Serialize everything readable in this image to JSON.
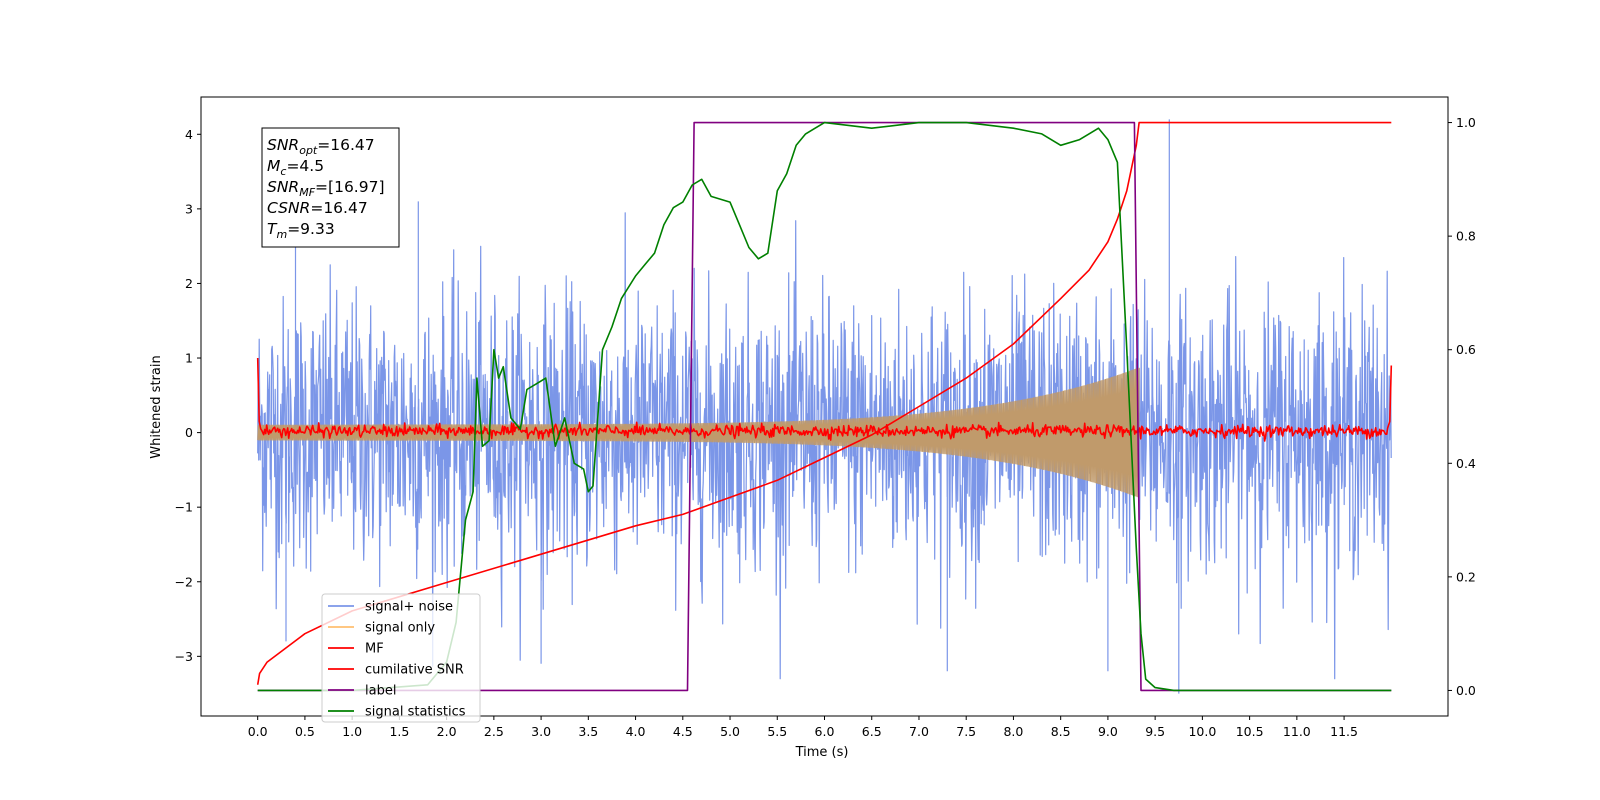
{
  "chart_data": {
    "type": "line",
    "xlabel": "Time (s)",
    "ylabel": "Whitened strain",
    "xlim": [
      -0.6,
      12.6
    ],
    "ylim": [
      -3.8,
      4.5
    ],
    "y2lim": [
      -0.045,
      1.045
    ],
    "x_ticks": [
      0.0,
      0.5,
      1.0,
      1.5,
      2.0,
      2.5,
      3.0,
      3.5,
      4.0,
      4.5,
      5.0,
      5.5,
      6.0,
      6.5,
      7.0,
      7.5,
      8.0,
      8.5,
      9.0,
      9.5,
      10.0,
      10.5,
      11.0,
      11.5
    ],
    "x_tick_labels": [
      "0.0",
      "0.5",
      "1.0",
      "1.5",
      "2.0",
      "2.5",
      "3.0",
      "3.5",
      "4.0",
      "4.5",
      "5.0",
      "5.5",
      "6.0",
      "6.5",
      "7.0",
      "7.5",
      "8.0",
      "8.5",
      "9.0",
      "9.5",
      "10.0",
      "10.5",
      "11.0",
      "11.5"
    ],
    "y_ticks": [
      -3,
      -2,
      -1,
      0,
      1,
      2,
      3,
      4
    ],
    "y_tick_labels": [
      "−3",
      "−2",
      "−1",
      "0",
      "1",
      "2",
      "3",
      "4"
    ],
    "y2_ticks": [
      0.0,
      0.2,
      0.4,
      0.6,
      0.8,
      1.0
    ],
    "y2_tick_labels": [
      "0.0",
      "0.2",
      "0.4",
      "0.6",
      "0.8",
      "1.0"
    ],
    "grid": false,
    "legend_position": "lower-left",
    "series": [
      {
        "name": "signal+ noise",
        "axis": "left",
        "color": "#7b96e8",
        "kind": "noise-band",
        "x_range": [
          0.0,
          12.0
        ],
        "noise_std": 0.9,
        "spikes": [
          {
            "x": 0.4,
            "y": 3.1
          },
          {
            "x": 1.7,
            "y": 3.1
          },
          {
            "x": 0.3,
            "y": -2.8
          },
          {
            "x": 3.0,
            "y": -3.1
          },
          {
            "x": 7.3,
            "y": -3.2
          },
          {
            "x": 9.0,
            "y": -3.2
          },
          {
            "x": 9.65,
            "y": 4.2
          },
          {
            "x": 9.75,
            "y": -3.5
          }
        ]
      },
      {
        "name": "signal only",
        "axis": "left",
        "color": "#c09a6b",
        "kind": "chirp",
        "x_range": [
          0.0,
          9.33
        ],
        "amplitude_start": 0.1,
        "amplitude_end": 0.85
      },
      {
        "name": "MF",
        "axis": "left",
        "color": "#ff0000",
        "kind": "flat-noise",
        "x_range": [
          0.0,
          12.0
        ],
        "noise_std": 0.04,
        "edge_values": [
          1.0,
          0.9
        ]
      },
      {
        "name": "cumilative SNR",
        "axis": "right",
        "color": "#ff0000",
        "x": [
          0.0,
          0.02,
          0.1,
          0.5,
          1.0,
          2.0,
          3.0,
          4.0,
          4.5,
          5.0,
          5.5,
          6.0,
          6.5,
          7.0,
          7.5,
          8.0,
          8.5,
          8.8,
          9.0,
          9.1,
          9.2,
          9.3,
          9.33,
          12.0
        ],
        "values": [
          0.01,
          0.03,
          0.05,
          0.1,
          0.14,
          0.19,
          0.24,
          0.29,
          0.31,
          0.34,
          0.37,
          0.41,
          0.45,
          0.5,
          0.55,
          0.61,
          0.69,
          0.74,
          0.79,
          0.83,
          0.88,
          0.96,
          1.0,
          1.0
        ]
      },
      {
        "name": "label",
        "axis": "right",
        "color": "#800080",
        "x": [
          0.0,
          4.55,
          4.62,
          9.28,
          9.35,
          12.0
        ],
        "values": [
          0.0,
          0.0,
          1.0,
          1.0,
          0.0,
          0.0
        ]
      },
      {
        "name": "signal statistics",
        "axis": "right",
        "color": "#008000",
        "x": [
          0.0,
          1.0,
          1.8,
          2.0,
          2.1,
          2.2,
          2.28,
          2.32,
          2.38,
          2.45,
          2.5,
          2.55,
          2.6,
          2.68,
          2.78,
          2.85,
          2.95,
          3.05,
          3.15,
          3.25,
          3.35,
          3.45,
          3.5,
          3.55,
          3.65,
          3.75,
          3.85,
          4.0,
          4.1,
          4.2,
          4.3,
          4.4,
          4.5,
          4.6,
          4.7,
          4.8,
          5.0,
          5.1,
          5.2,
          5.3,
          5.4,
          5.5,
          5.6,
          5.7,
          5.8,
          5.9,
          6.0,
          6.5,
          7.0,
          7.5,
          8.0,
          8.3,
          8.5,
          8.7,
          8.8,
          8.9,
          9.0,
          9.1,
          9.2,
          9.3,
          9.35,
          9.4,
          9.5,
          9.7,
          12.0
        ],
        "values": [
          0.0,
          0.0,
          0.01,
          0.05,
          0.12,
          0.3,
          0.35,
          0.55,
          0.43,
          0.44,
          0.6,
          0.55,
          0.57,
          0.48,
          0.46,
          0.53,
          0.54,
          0.55,
          0.43,
          0.48,
          0.4,
          0.39,
          0.35,
          0.36,
          0.6,
          0.64,
          0.69,
          0.73,
          0.75,
          0.77,
          0.82,
          0.85,
          0.86,
          0.89,
          0.9,
          0.87,
          0.86,
          0.82,
          0.78,
          0.76,
          0.77,
          0.88,
          0.91,
          0.96,
          0.98,
          0.99,
          1.0,
          0.99,
          1.0,
          1.0,
          0.99,
          0.98,
          0.96,
          0.97,
          0.98,
          0.99,
          0.97,
          0.93,
          0.6,
          0.25,
          0.1,
          0.02,
          0.005,
          0.0,
          0.0
        ]
      }
    ],
    "annotation": [
      {
        "var": "SNR",
        "sub": "opt",
        "value": "=16.47"
      },
      {
        "var": "M",
        "sub": "c",
        "value": "=4.5"
      },
      {
        "var": "SNR",
        "sub": "MF",
        "value": "=[16.97]"
      },
      {
        "var": "CSNR",
        "sub": "",
        "value": "=16.47"
      },
      {
        "var": "T",
        "sub": "m",
        "value": "=9.33"
      }
    ]
  }
}
